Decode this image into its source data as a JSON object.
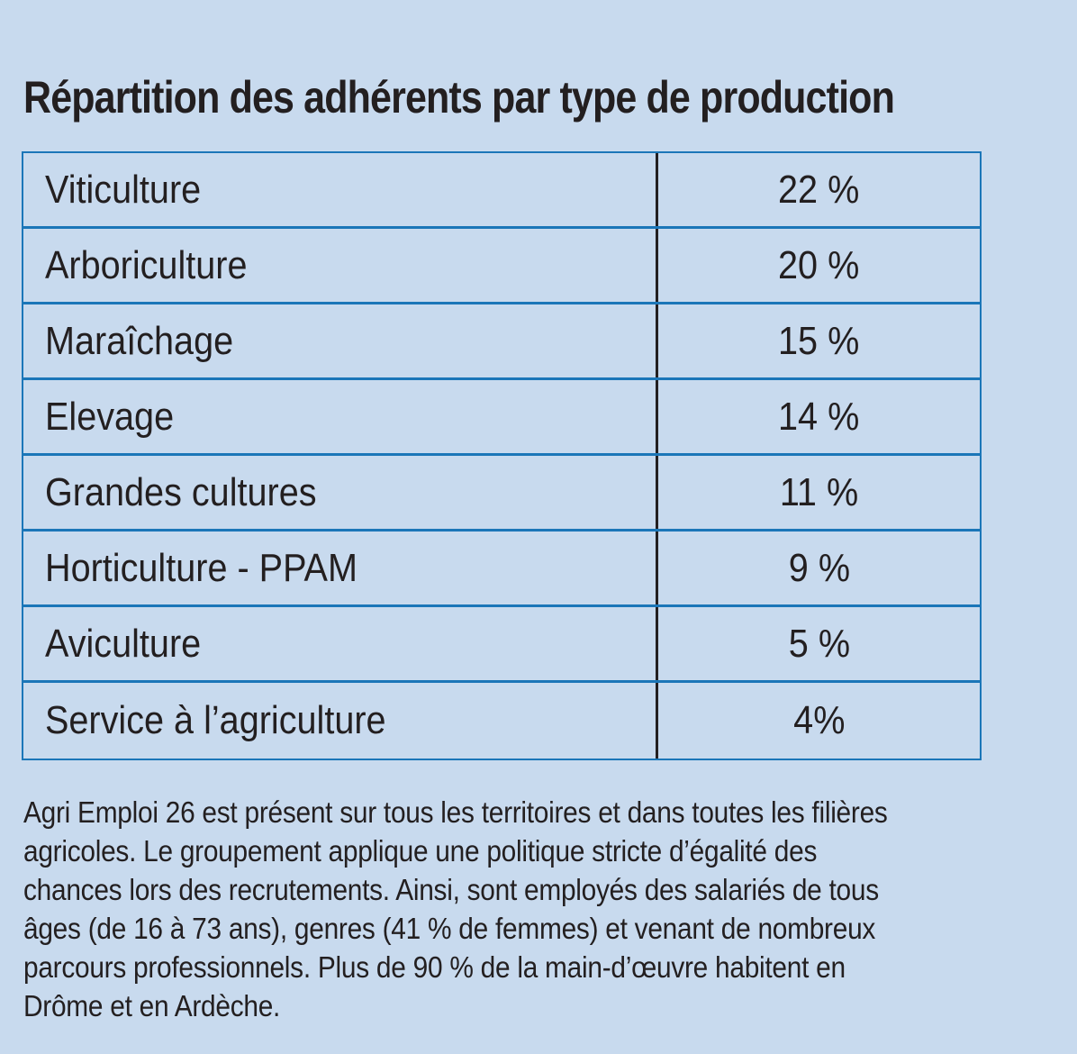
{
  "title": "Répartition des adhérents par type de production",
  "table": {
    "rows": [
      {
        "label": "Viticulture",
        "value": "22 %"
      },
      {
        "label": "Arboriculture",
        "value": "20 %"
      },
      {
        "label": "Maraîchage",
        "value": "15 %"
      },
      {
        "label": "Elevage",
        "value": "14 %"
      },
      {
        "label": "Grandes cultures",
        "value": "11 %"
      },
      {
        "label": "Horticulture - PPAM",
        "value": "9 %"
      },
      {
        "label": "Aviculture",
        "value": "5 %"
      },
      {
        "label": "Service à l’agriculture",
        "value": "4%"
      }
    ]
  },
  "note": {
    "lines": [
      "Agri Emploi 26 est présent sur tous les territoires et dans toutes les filières",
      "agricoles. Le groupement applique une politique stricte d’égalité des",
      "chances lors des recrutements. Ainsi, sont employés des salariés de tous",
      "âges (de 16 à 73 ans), genres (41 % de femmes) et venant de nombreux",
      "parcours professionnels. Plus de 90 % de la main-d’œuvre habitent en",
      "Drôme et en Ardèche."
    ]
  },
  "colors": {
    "background": "#c8daee",
    "table_border": "#1b76b8",
    "text": "#231f20"
  }
}
